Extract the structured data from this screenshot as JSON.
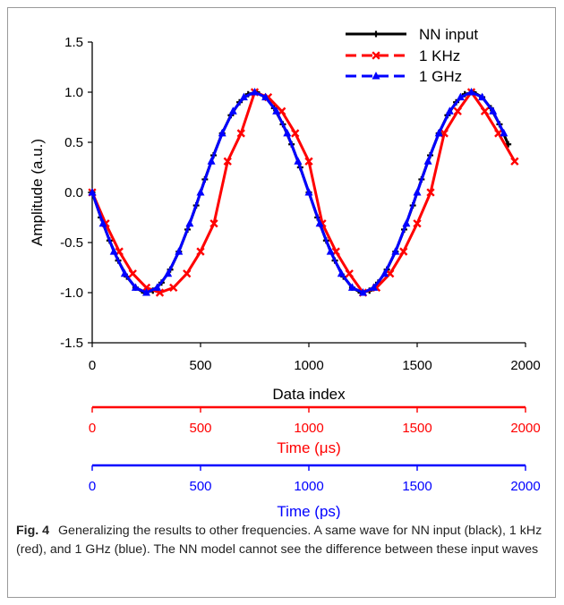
{
  "chart_data": {
    "type": "line",
    "xlabel": "Data index",
    "ylabel": "Amplitude (a.u.)",
    "xlim": [
      0,
      2000
    ],
    "ylim": [
      -1.5,
      1.5
    ],
    "x_ticks": [
      "0",
      "500",
      "1000",
      "1500",
      "2000"
    ],
    "y_ticks": [
      "-1.5",
      "-1.0",
      "-0.5",
      "0.0",
      "0.5",
      "1.0",
      "1.5"
    ],
    "grid": false,
    "legend_position": "top-right",
    "series": [
      {
        "name": "NN input",
        "color": "#000000",
        "marker": "plus",
        "x": [
          0,
          40,
          80,
          120,
          160,
          200,
          240,
          280,
          320,
          360,
          400,
          440,
          480,
          520,
          560,
          600,
          640,
          680,
          720,
          760,
          800,
          840,
          880,
          920,
          960,
          1000,
          1040,
          1080,
          1120,
          1160,
          1200,
          1240,
          1280,
          1320,
          1360,
          1400,
          1440,
          1480,
          1520,
          1560,
          1600,
          1640,
          1680,
          1720,
          1760,
          1800,
          1840,
          1880,
          1920
        ],
        "y": [
          0.0,
          -0.25,
          -0.48,
          -0.68,
          -0.84,
          -0.95,
          -1.0,
          -0.98,
          -0.9,
          -0.77,
          -0.59,
          -0.37,
          -0.13,
          0.13,
          0.37,
          0.59,
          0.77,
          0.9,
          0.98,
          1.0,
          0.95,
          0.84,
          0.68,
          0.48,
          0.25,
          0.0,
          -0.25,
          -0.48,
          -0.68,
          -0.84,
          -0.95,
          -1.0,
          -0.98,
          -0.9,
          -0.77,
          -0.59,
          -0.37,
          -0.13,
          0.13,
          0.37,
          0.59,
          0.77,
          0.9,
          0.98,
          1.0,
          0.95,
          0.84,
          0.68,
          0.48
        ]
      },
      {
        "name": "1 KHz",
        "color": "#ff0000",
        "marker": "x",
        "x": [
          0,
          62,
          125,
          187,
          250,
          312,
          375,
          437,
          500,
          562,
          625,
          687,
          750,
          812,
          875,
          937,
          1000,
          1062,
          1125,
          1187,
          1250,
          1312,
          1375,
          1437,
          1500,
          1562,
          1625,
          1687,
          1750,
          1812,
          1875,
          1950
        ],
        "y": [
          0.0,
          -0.31,
          -0.59,
          -0.81,
          -0.95,
          -1.0,
          -0.95,
          -0.81,
          -0.59,
          -0.31,
          0.31,
          0.59,
          1.0,
          0.95,
          0.81,
          0.59,
          0.31,
          -0.31,
          -0.59,
          -0.81,
          -1.0,
          -0.95,
          -0.81,
          -0.59,
          -0.31,
          0.0,
          0.59,
          0.81,
          1.0,
          0.81,
          0.59,
          0.31
        ]
      },
      {
        "name": "1 GHz",
        "color": "#0000ff",
        "marker": "triangle",
        "x": [
          0,
          50,
          100,
          150,
          200,
          250,
          300,
          350,
          400,
          450,
          500,
          550,
          600,
          650,
          700,
          750,
          800,
          850,
          900,
          950,
          1000,
          1050,
          1100,
          1150,
          1200,
          1250,
          1300,
          1350,
          1400,
          1450,
          1500,
          1550,
          1600,
          1650,
          1700,
          1750,
          1800,
          1850,
          1900
        ],
        "y": [
          0.0,
          -0.31,
          -0.59,
          -0.81,
          -0.95,
          -1.0,
          -0.95,
          -0.81,
          -0.59,
          -0.31,
          0.0,
          0.31,
          0.59,
          0.81,
          0.95,
          1.0,
          0.95,
          0.81,
          0.59,
          0.31,
          0.0,
          -0.31,
          -0.59,
          -0.81,
          -0.95,
          -1.0,
          -0.95,
          -0.81,
          -0.59,
          -0.31,
          0.0,
          0.31,
          0.59,
          0.81,
          0.95,
          1.0,
          0.95,
          0.81,
          0.59
        ]
      }
    ],
    "secondary_axes": [
      {
        "label": "Time (μs)",
        "color": "#ff0000",
        "ticks": [
          "0",
          "500",
          "1000",
          "1500",
          "2000"
        ]
      },
      {
        "label": "Time (ps)",
        "color": "#0000ff",
        "ticks": [
          "0",
          "500",
          "1000",
          "1500",
          "2000"
        ]
      }
    ]
  },
  "caption": {
    "label": "Fig. 4",
    "text": "Generalizing the results to other frequencies. A same wave for NN input (black), 1 kHz (red), and 1 GHz (blue). The NN model cannot see the difference between these input waves"
  }
}
